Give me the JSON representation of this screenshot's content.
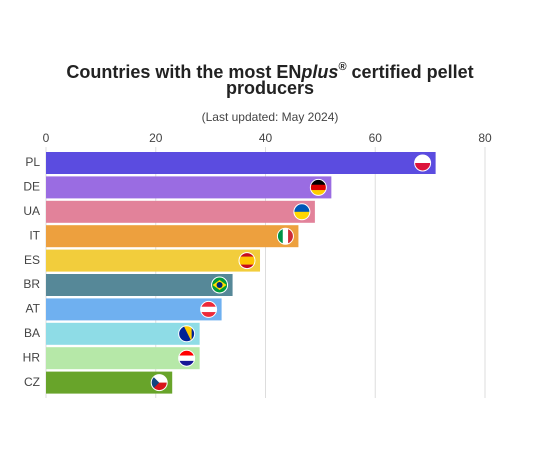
{
  "chart_data": {
    "type": "bar",
    "orientation": "horizontal",
    "title": [
      "Countries with the most EN",
      "plus",
      "®",
      " certified pellet",
      "producers"
    ],
    "subtitle": "(Last updated: May 2024)",
    "categories": [
      "PL",
      "DE",
      "UA",
      "IT",
      "ES",
      "BR",
      "AT",
      "BA",
      "HR",
      "CZ"
    ],
    "values": [
      71,
      52,
      49,
      46,
      39,
      34,
      32,
      28,
      28,
      23
    ],
    "colors": [
      "#5b4ce0",
      "#9a6ce2",
      "#e2829a",
      "#eda03e",
      "#f2cd3c",
      "#568898",
      "#6fb0f0",
      "#8edce6",
      "#b6e8a8",
      "#68a42a"
    ],
    "xlim": [
      0,
      80
    ],
    "xticks": [
      0,
      20,
      40,
      60,
      80
    ],
    "grid": true
  }
}
